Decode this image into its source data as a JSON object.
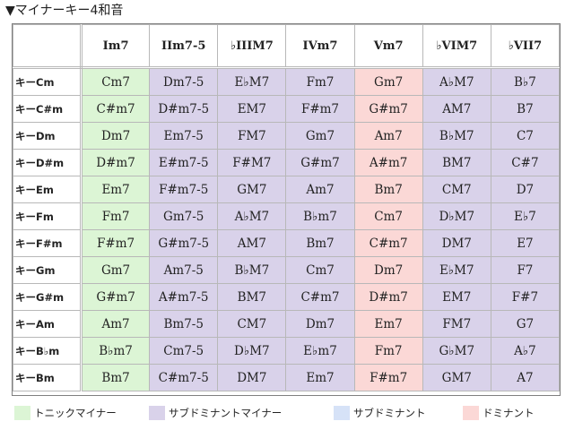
{
  "title": "▼マイナーキー4和音",
  "colors": {
    "tonic": "#dcf5d5",
    "subdominant_minor": "#d9d2ea",
    "subdominant": "#d6e2f7",
    "dominant": "#fbd8d6"
  },
  "columns": [
    "Im7",
    "IIm7-5",
    "♭IIIM7",
    "IVm7",
    "Vm7",
    "♭VIM7",
    "♭VII7"
  ],
  "column_roles": [
    "tonic",
    "subdominant_minor",
    "subdominant_minor",
    "subdominant_minor",
    "dominant",
    "subdominant_minor",
    "subdominant_minor"
  ],
  "rows": [
    {
      "key": "キーCm",
      "cells": [
        "Cm7",
        "Dm7-5",
        "E♭M7",
        "Fm7",
        "Gm7",
        "A♭M7",
        "B♭7"
      ]
    },
    {
      "key": "キーC#m",
      "cells": [
        "C#m7",
        "D#m7-5",
        "EM7",
        "F#m7",
        "G#m7",
        "AM7",
        "B7"
      ]
    },
    {
      "key": "キーDm",
      "cells": [
        "Dm7",
        "Em7-5",
        "FM7",
        "Gm7",
        "Am7",
        "B♭M7",
        "C7"
      ]
    },
    {
      "key": "キーD#m",
      "cells": [
        "D#m7",
        "E#m7-5",
        "F#M7",
        "G#m7",
        "A#m7",
        "BM7",
        "C#7"
      ]
    },
    {
      "key": "キーEm",
      "cells": [
        "Em7",
        "F#m7-5",
        "GM7",
        "Am7",
        "Bm7",
        "CM7",
        "D7"
      ]
    },
    {
      "key": "キーFm",
      "cells": [
        "Fm7",
        "Gm7-5",
        "A♭M7",
        "B♭m7",
        "Cm7",
        "D♭M7",
        "E♭7"
      ]
    },
    {
      "key": "キーF#m",
      "cells": [
        "F#m7",
        "G#m7-5",
        "AM7",
        "Bm7",
        "C#m7",
        "DM7",
        "E7"
      ]
    },
    {
      "key": "キーGm",
      "cells": [
        "Gm7",
        "Am7-5",
        "B♭M7",
        "Cm7",
        "Dm7",
        "E♭M7",
        "F7"
      ]
    },
    {
      "key": "キーG#m",
      "cells": [
        "G#m7",
        "A#m7-5",
        "BM7",
        "C#m7",
        "D#m7",
        "EM7",
        "F#7"
      ]
    },
    {
      "key": "キーAm",
      "cells": [
        "Am7",
        "Bm7-5",
        "CM7",
        "Dm7",
        "Em7",
        "FM7",
        "G7"
      ]
    },
    {
      "key": "キーB♭m",
      "cells": [
        "B♭m7",
        "Cm7-5",
        "D♭M7",
        "E♭m7",
        "Fm7",
        "G♭M7",
        "A♭7"
      ]
    },
    {
      "key": "キーBm",
      "cells": [
        "Bm7",
        "C#m7-5",
        "DM7",
        "Em7",
        "F#m7",
        "GM7",
        "A7"
      ]
    }
  ],
  "legend": [
    {
      "label": "トニックマイナー",
      "role": "tonic"
    },
    {
      "label": "サブドミナントマイナー",
      "role": "subdominant_minor"
    },
    {
      "label": "サブドミナント",
      "role": "subdominant"
    },
    {
      "label": "ドミナント",
      "role": "dominant"
    }
  ]
}
